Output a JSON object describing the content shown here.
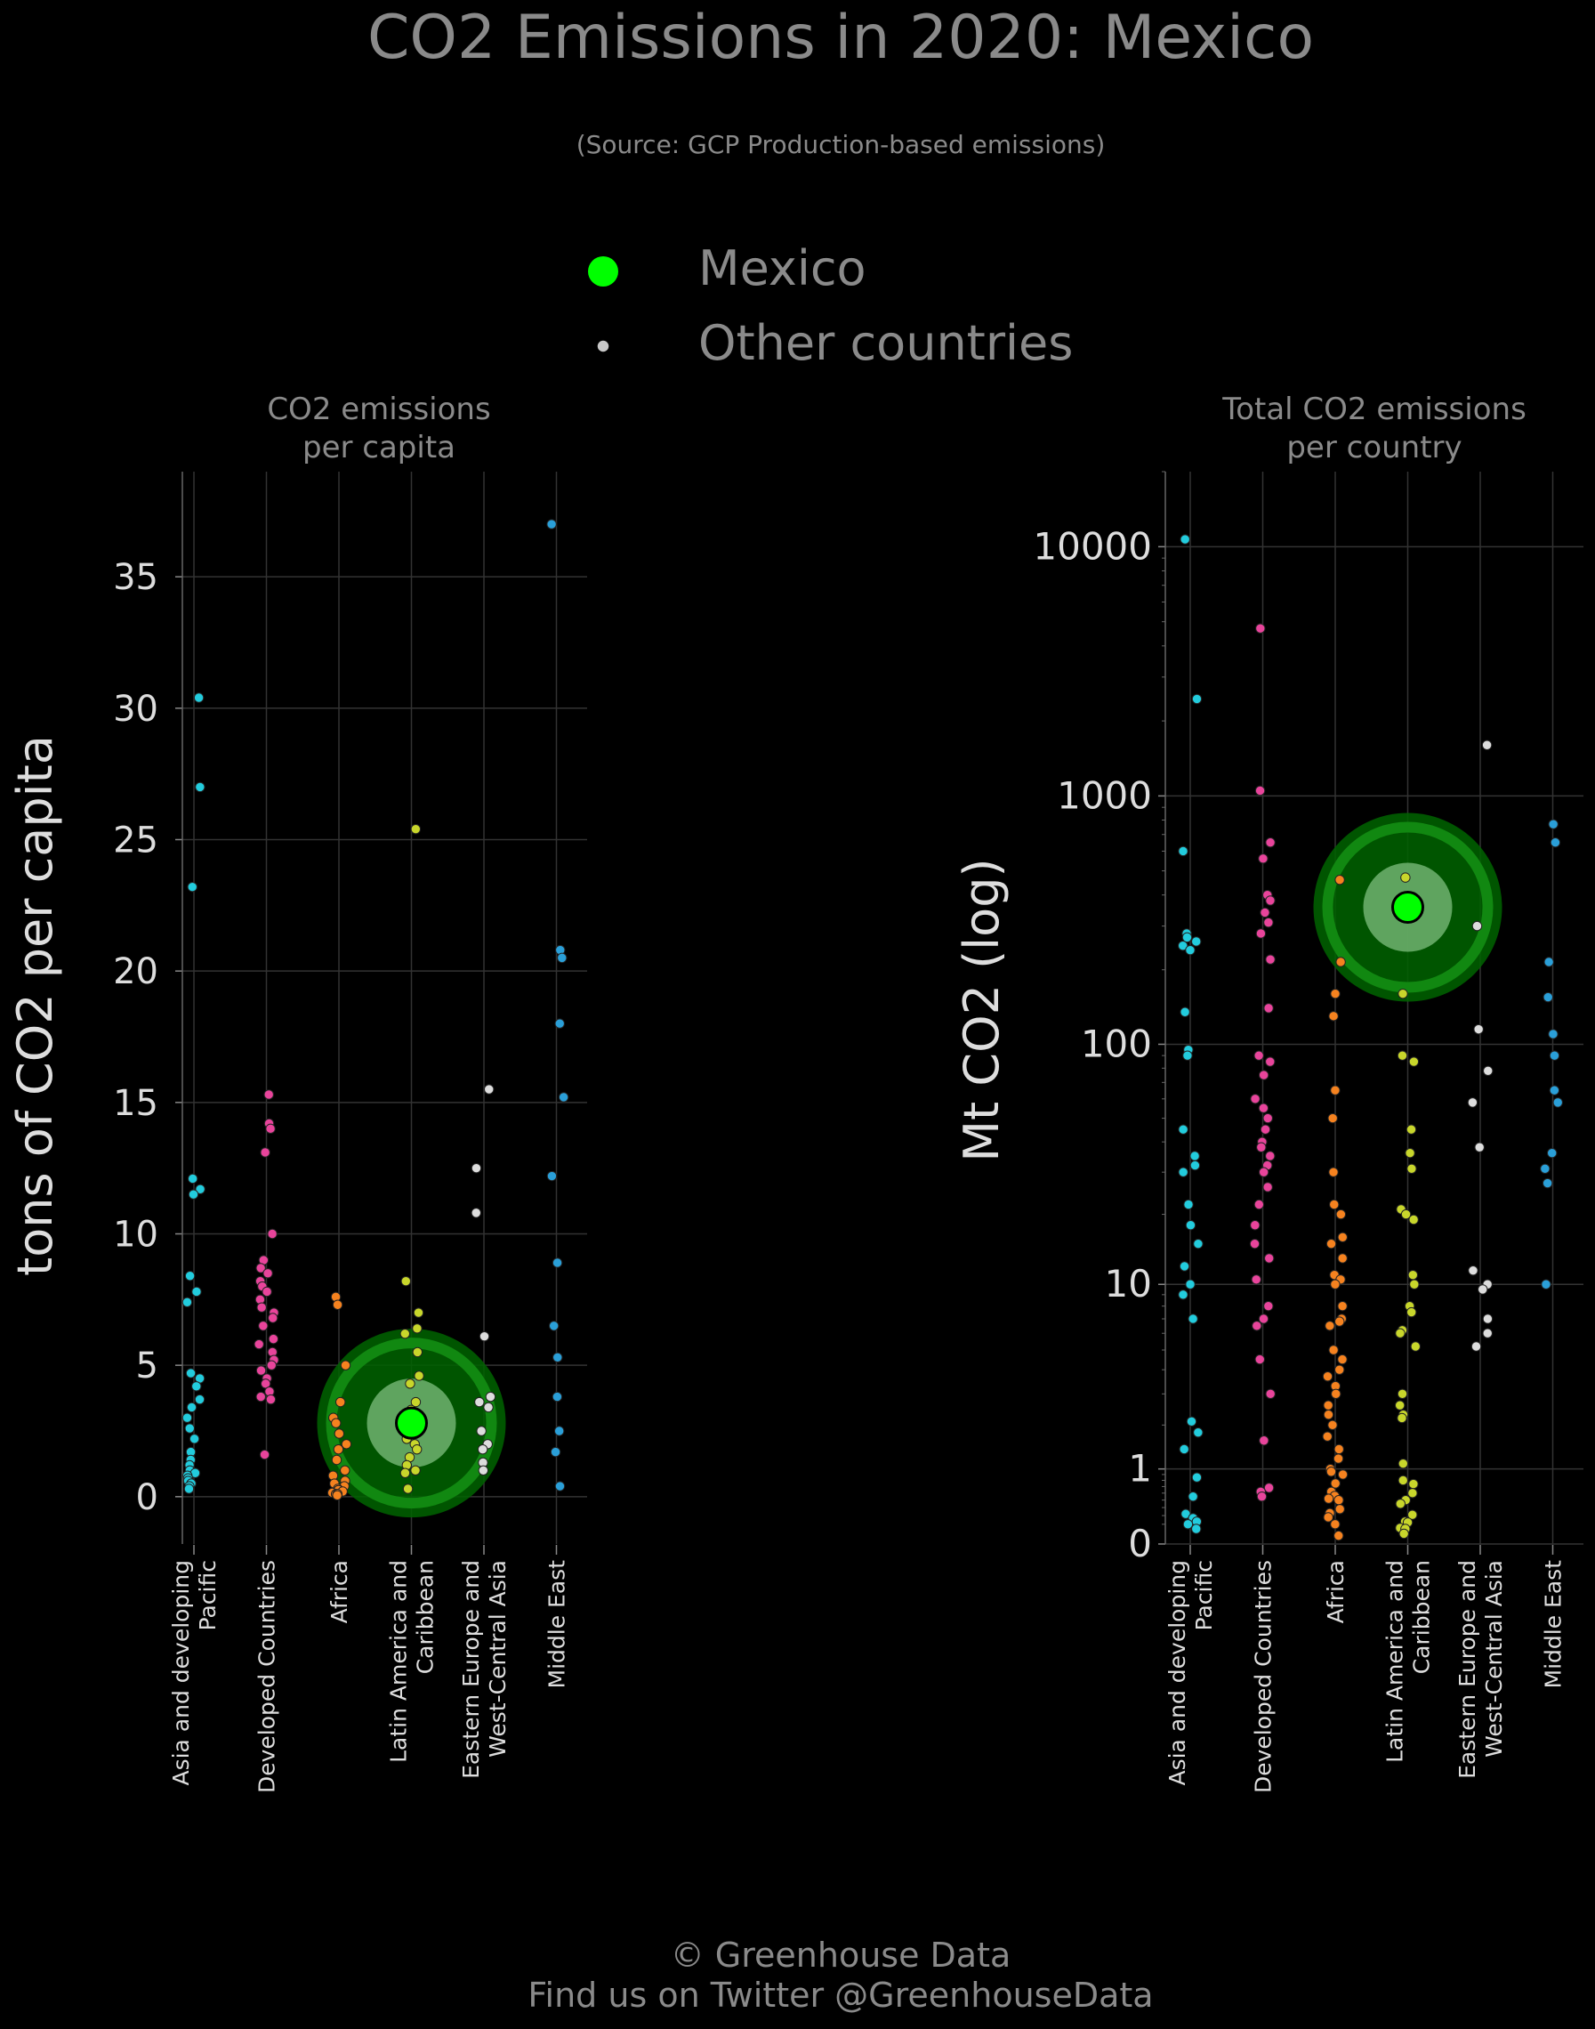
{
  "title": "CO2 Emissions in 2020: Mexico",
  "subtitle": "(Source: GCP Production-based emissions)",
  "legend": {
    "highlight_label": "Mexico",
    "other_label": "Other countries",
    "highlight_color": "#00ff00",
    "other_color": "#c8c8c8"
  },
  "footer": {
    "line1": "© Greenhouse Data",
    "line2": "Find us on Twitter @GreenhouseData"
  },
  "colors": {
    "Asia and developing Pacific": "#22ccdd",
    "Developed Countries": "#e8449b",
    "Africa": "#f5821f",
    "Latin America and Caribbean": "#c8d62b",
    "Eastern Europe and West-Central Asia": "#dddddd",
    "Middle East": "#2a9fd8",
    "highlight": "#00ff00",
    "halo_dark": "#006400",
    "halo_light": "#7fbf7f"
  },
  "chart_data": [
    {
      "type": "scatter",
      "title": "CO2 emissions\nper capita",
      "ylabel": "tons of CO2 per capita",
      "xlabel": "",
      "scale": "linear",
      "ylim": [
        -1.8,
        39
      ],
      "yticks": [
        0,
        5,
        10,
        15,
        20,
        25,
        30,
        35
      ],
      "ytick_labels": [
        "0",
        "5",
        "10",
        "15",
        "20",
        "25",
        "30",
        "35"
      ],
      "grid": true,
      "categories": [
        "Asia and developing\nPacific",
        "Developed Countries",
        "Africa",
        "Latin America and\nCaribbean",
        "Eastern Europe and\nWest-Central Asia",
        "Middle East"
      ],
      "highlight": {
        "name": "Mexico",
        "category": "Latin America and\nCaribbean",
        "value": 2.8
      },
      "series": [
        {
          "category": "Asia and developing\nPacific",
          "values": [
            30.4,
            27.0,
            23.2,
            12.1,
            11.7,
            11.5,
            8.4,
            7.8,
            7.4,
            4.7,
            4.5,
            4.2,
            3.7,
            3.4,
            3.0,
            2.6,
            2.2,
            1.7,
            1.4,
            1.2,
            1.0,
            0.9,
            0.8,
            0.7,
            0.6,
            0.5,
            0.4,
            0.3
          ]
        },
        {
          "category": "Developed Countries",
          "values": [
            15.3,
            14.2,
            14.0,
            13.1,
            10.0,
            9.0,
            8.7,
            8.5,
            8.2,
            8.0,
            7.8,
            7.5,
            7.2,
            7.0,
            6.8,
            6.5,
            6.0,
            5.8,
            5.5,
            5.2,
            5.0,
            4.8,
            4.5,
            4.3,
            4.0,
            3.8,
            3.7,
            1.6
          ]
        },
        {
          "category": "Africa",
          "values": [
            7.6,
            7.3,
            5.0,
            3.6,
            3.0,
            2.8,
            2.4,
            2.0,
            1.8,
            1.4,
            1.0,
            0.8,
            0.6,
            0.5,
            0.4,
            0.3,
            0.25,
            0.2,
            0.15,
            0.1,
            0.1,
            0.05
          ]
        },
        {
          "category": "Latin America and\nCaribbean",
          "values": [
            25.4,
            8.2,
            7.0,
            6.4,
            6.2,
            5.5,
            4.6,
            4.3,
            3.6,
            3.3,
            3.0,
            2.5,
            2.2,
            2.0,
            1.8,
            1.5,
            1.2,
            1.0,
            0.9,
            0.3
          ]
        },
        {
          "category": "Eastern Europe and\nWest-Central Asia",
          "values": [
            15.5,
            12.5,
            10.8,
            6.1,
            3.8,
            3.6,
            3.4,
            2.5,
            2.0,
            1.8,
            1.3,
            1.0
          ]
        },
        {
          "category": "Middle East",
          "values": [
            37.0,
            20.8,
            20.5,
            18.0,
            15.2,
            12.2,
            8.9,
            6.5,
            5.3,
            3.8,
            2.5,
            1.7,
            0.4
          ]
        }
      ]
    },
    {
      "type": "scatter",
      "title": "Total CO2 emissions\nper country",
      "ylabel": "Mt CO2 (log)",
      "xlabel": "",
      "scale": "log1p",
      "ylim": [
        0,
        20000
      ],
      "yticks": [
        0,
        1,
        10,
        100,
        1000,
        10000
      ],
      "ytick_labels": [
        "0",
        "1",
        "10",
        "100",
        "1000",
        "10000"
      ],
      "grid": true,
      "categories": [
        "Asia and developing\nPacific",
        "Developed Countries",
        "Africa",
        "Latin America and\nCaribbean",
        "Eastern Europe and\nWest-Central Asia",
        "Middle East"
      ],
      "highlight": {
        "name": "Mexico",
        "category": "Latin America and\nCaribbean",
        "value": 357
      },
      "series": [
        {
          "category": "Asia and developing\nPacific",
          "values": [
            10700,
            2450,
            600,
            280,
            270,
            260,
            250,
            240,
            135,
            95,
            90,
            45,
            35,
            32,
            30,
            22,
            18,
            15,
            12,
            10,
            9,
            7,
            2.1,
            1.8,
            1.4,
            0.85,
            0.55,
            0.32,
            0.27,
            0.23,
            0.2,
            0.15
          ]
        },
        {
          "category": "Developed Countries",
          "values": [
            4700,
            1050,
            650,
            560,
            400,
            380,
            340,
            310,
            280,
            220,
            140,
            90,
            85,
            75,
            60,
            55,
            50,
            45,
            40,
            38,
            35,
            32,
            30,
            26,
            22,
            18,
            15,
            13,
            10.5,
            8,
            7,
            6.5,
            4.5,
            3,
            1.6,
            0.68,
            0.62,
            0.55
          ]
        },
        {
          "category": "Africa",
          "values": [
            460,
            215,
            160,
            130,
            65,
            50,
            30,
            22,
            20,
            16,
            15,
            13,
            11,
            10.5,
            10,
            8,
            7,
            6.8,
            6.5,
            5,
            4.5,
            4,
            3.7,
            3.3,
            3,
            2.6,
            2.3,
            2,
            1.7,
            1.4,
            1.2,
            1.0,
            0.95,
            0.9,
            0.75,
            0.62,
            0.56,
            0.52,
            0.5,
            0.38,
            0.33,
            0.28,
            0.2,
            0.08
          ]
        },
        {
          "category": "Latin America and\nCaribbean",
          "values": [
            470,
            160,
            90,
            85,
            45,
            36,
            31,
            21,
            20,
            19,
            11,
            10,
            8,
            7.5,
            6.2,
            6.0,
            5.2,
            3,
            2.6,
            2.3,
            2.2,
            1.1,
            0.8,
            0.74,
            0.6,
            0.5,
            0.45,
            0.31,
            0.23,
            0.22,
            0.16,
            0.15,
            0.1
          ]
        },
        {
          "category": "Eastern Europe and\nWest-Central Asia",
          "values": [
            1600,
            300,
            115,
            78,
            58,
            38,
            11.5,
            10,
            9.5,
            7,
            6,
            5.2
          ]
        },
        {
          "category": "Middle East",
          "values": [
            770,
            650,
            215,
            155,
            110,
            90,
            65,
            58,
            36,
            31,
            27,
            10
          ]
        }
      ]
    }
  ]
}
